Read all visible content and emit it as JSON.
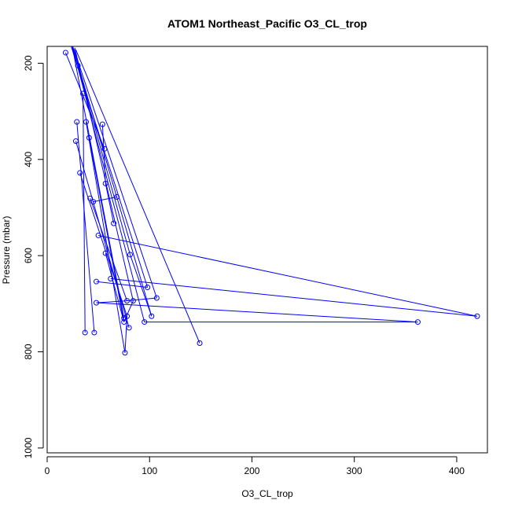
{
  "chart_data": {
    "type": "line",
    "title": "ATOM1 Northeast_Pacific O3_CL_trop",
    "xlabel": "O3_CL_trop",
    "ylabel": "Pressure (mbar)",
    "xlim": [
      0,
      430
    ],
    "ylim": [
      1010,
      165
    ],
    "y_reversed": true,
    "x_ticks": [
      0,
      100,
      200,
      300,
      400
    ],
    "y_ticks": [
      200,
      400,
      600,
      800,
      1000
    ],
    "marker": "open-circle",
    "series_color": "#0000ff",
    "points": [
      [
        23,
        148
      ],
      [
        18,
        178
      ],
      [
        30,
        205
      ],
      [
        35,
        263
      ],
      [
        29,
        322
      ],
      [
        38,
        322
      ],
      [
        54,
        327
      ],
      [
        28,
        362
      ],
      [
        41,
        355
      ],
      [
        56,
        378
      ],
      [
        32,
        428
      ],
      [
        57,
        450
      ],
      [
        42,
        481
      ],
      [
        45,
        488
      ],
      [
        68,
        478
      ],
      [
        65,
        533
      ],
      [
        50,
        558
      ],
      [
        57,
        595
      ],
      [
        81,
        598
      ],
      [
        62,
        648
      ],
      [
        48,
        654
      ],
      [
        98,
        666
      ],
      [
        107,
        688
      ],
      [
        84,
        694
      ],
      [
        78,
        694
      ],
      [
        48,
        698
      ],
      [
        102,
        726
      ],
      [
        78,
        726
      ],
      [
        75,
        730
      ],
      [
        420,
        726
      ],
      [
        75,
        738
      ],
      [
        95,
        738
      ],
      [
        362,
        738
      ],
      [
        80,
        750
      ],
      [
        37,
        760
      ],
      [
        46,
        760
      ],
      [
        149,
        782
      ],
      [
        76,
        802
      ]
    ],
    "segments": [
      [
        [
          23,
          148
        ],
        [
          75,
          730
        ]
      ],
      [
        [
          30,
          205
        ],
        [
          81,
          598
        ]
      ],
      [
        [
          24,
          160
        ],
        [
          95,
          738
        ]
      ],
      [
        [
          22,
          155
        ],
        [
          98,
          666
        ]
      ],
      [
        [
          26,
          170
        ],
        [
          107,
          688
        ]
      ],
      [
        [
          25,
          165
        ],
        [
          102,
          726
        ]
      ],
      [
        [
          27,
          168
        ],
        [
          84,
          694
        ]
      ],
      [
        [
          28,
          172
        ],
        [
          149,
          782
        ]
      ],
      [
        [
          18,
          178
        ],
        [
          56,
          378
        ]
      ],
      [
        [
          35,
          263
        ],
        [
          37,
          760
        ]
      ],
      [
        [
          29,
          322
        ],
        [
          46,
          760
        ]
      ],
      [
        [
          38,
          322
        ],
        [
          76,
          802
        ]
      ],
      [
        [
          28,
          362
        ],
        [
          80,
          750
        ]
      ],
      [
        [
          41,
          355
        ],
        [
          75,
          738
        ]
      ],
      [
        [
          32,
          428
        ],
        [
          78,
          726
        ]
      ],
      [
        [
          42,
          481
        ],
        [
          78,
          694
        ]
      ],
      [
        [
          54,
          327
        ],
        [
          57,
          450
        ]
      ],
      [
        [
          57,
          450
        ],
        [
          65,
          533
        ]
      ],
      [
        [
          45,
          488
        ],
        [
          68,
          478
        ]
      ],
      [
        [
          50,
          558
        ],
        [
          420,
          726
        ]
      ],
      [
        [
          62,
          648
        ],
        [
          420,
          726
        ]
      ],
      [
        [
          48,
          698
        ],
        [
          362,
          738
        ]
      ],
      [
        [
          78,
          694
        ],
        [
          107,
          688
        ]
      ],
      [
        [
          48,
          654
        ],
        [
          98,
          666
        ]
      ],
      [
        [
          95,
          738
        ],
        [
          362,
          738
        ]
      ],
      [
        [
          57,
          595
        ],
        [
          75,
          738
        ]
      ],
      [
        [
          81,
          598
        ],
        [
          102,
          726
        ]
      ],
      [
        [
          48,
          698
        ],
        [
          78,
          694
        ]
      ],
      [
        [
          75,
          738
        ],
        [
          84,
          694
        ]
      ],
      [
        [
          76,
          802
        ],
        [
          78,
          726
        ]
      ]
    ]
  }
}
